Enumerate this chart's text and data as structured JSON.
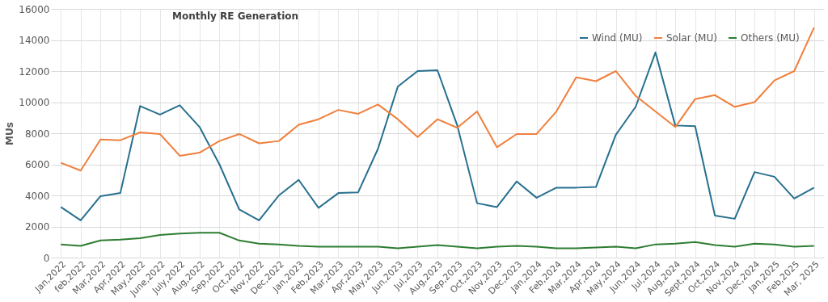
{
  "chart_data": {
    "type": "line",
    "title": "Monthly RE Generation",
    "ylabel": "MUs",
    "categories": [
      "Jan,2022",
      "feb,2022",
      "Mar,2022",
      "Apr,2022",
      "May,2022",
      "June,2022",
      "July,2022",
      "Aug,2022",
      "Sep,2022",
      "Oct,2022",
      "Nov,2022",
      "Dec,2022",
      "Jan,2023",
      "Feb,2023",
      "Mar,2023",
      "Apr,2023",
      "May,2023",
      "Jun,2023",
      "Jul,2023",
      "Aug,2023",
      "Sep,2023",
      "Oct,2023",
      "Nov,2023",
      "Dec,2023",
      "Jan,2024",
      "Feb,2024",
      "Mar,2024",
      "Apr,2024",
      "May,2024",
      "Jun,2024",
      "Jul,2024",
      "Aug,2024",
      "Sept,2024",
      "Oct,2024",
      "Nov,2024",
      "Dec,2024",
      "Jan,2025",
      "Feb,2025",
      "Mar, 2025"
    ],
    "series": [
      {
        "name": "Wind (MU)",
        "color": "#276f8f",
        "values": [
          3250,
          2400,
          3950,
          4150,
          9750,
          9200,
          9800,
          8400,
          6000,
          3100,
          2400,
          4000,
          5000,
          3200,
          4150,
          4200,
          7000,
          11000,
          12000,
          12050,
          8500,
          3500,
          3250,
          4900,
          3850,
          4500,
          4500,
          4550,
          7900,
          9700,
          13200,
          8500,
          8450,
          2700,
          2500,
          5500,
          5200,
          3800,
          4500
        ]
      },
      {
        "name": "Solar (MU)",
        "color": "#f07f3c",
        "values": [
          6100,
          5600,
          7600,
          7550,
          8050,
          7950,
          6550,
          6750,
          7500,
          7950,
          7350,
          7500,
          8550,
          8900,
          9500,
          9250,
          9850,
          8900,
          7750,
          8900,
          8350,
          9400,
          7100,
          7950,
          7950,
          9400,
          11600,
          11350,
          12000,
          10400,
          9400,
          8400,
          10200,
          10450,
          9700,
          10000,
          11400,
          12000,
          14800
        ]
      },
      {
        "name": "Others (MU)",
        "color": "#2e7d32",
        "values": [
          850,
          750,
          1100,
          1150,
          1250,
          1450,
          1550,
          1600,
          1600,
          1100,
          900,
          850,
          750,
          700,
          700,
          700,
          700,
          600,
          700,
          800,
          700,
          600,
          700,
          750,
          700,
          600,
          600,
          650,
          700,
          600,
          850,
          900,
          1000,
          800,
          700,
          900,
          850,
          700,
          750
        ]
      }
    ],
    "ylim": [
      0,
      16000
    ],
    "yticks": [
      0,
      2000,
      4000,
      6000,
      8000,
      10000,
      12000,
      14000,
      16000
    ],
    "grid": true,
    "legend": "top right",
    "marker": "none",
    "line_style": "solid"
  }
}
